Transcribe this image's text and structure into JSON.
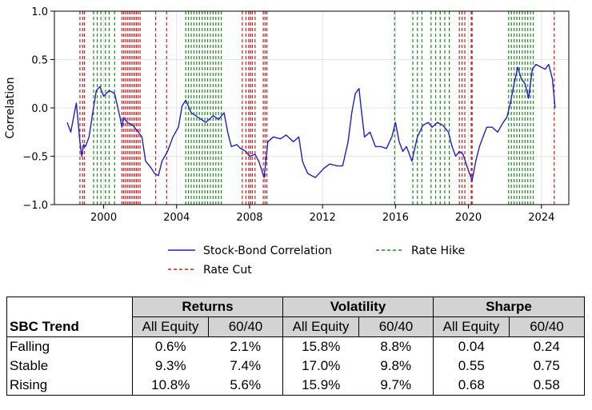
{
  "chart_data": {
    "type": "line",
    "title": "",
    "xlabel": "",
    "ylabel": "Correlation",
    "xlim": [
      1997.3,
      2025.5
    ],
    "ylim": [
      -1.0,
      1.0
    ],
    "xticks": [
      2000,
      2004,
      2008,
      2012,
      2016,
      2020,
      2024
    ],
    "xtick_labels": [
      "2000",
      "2004",
      "2008",
      "2012",
      "2016",
      "2020",
      "2024"
    ],
    "yticks": [
      -1.0,
      -0.5,
      0.0,
      0.5,
      1.0
    ],
    "ytick_labels": [
      "−1.0",
      "−0.5",
      "0.0",
      "0.5",
      "1.0"
    ],
    "grid": true,
    "legend_position": "below",
    "series": [
      {
        "name": "Stock-Bond Correlation",
        "color": "#1f1fcc",
        "x": [
          1998.0,
          1998.2,
          1998.35,
          1998.5,
          1998.7,
          1998.8,
          1998.9,
          1999.0,
          1999.2,
          1999.4,
          1999.6,
          1999.8,
          2000.0,
          2000.3,
          2000.6,
          2000.9,
          2001.0,
          2001.1,
          2001.3,
          2001.6,
          2001.9,
          2002.1,
          2002.3,
          2002.6,
          2002.8,
          2003.0,
          2003.2,
          2003.5,
          2003.8,
          2004.1,
          2004.3,
          2004.5,
          2004.8,
          2005.2,
          2005.6,
          2006.0,
          2006.3,
          2006.6,
          2006.8,
          2007.0,
          2007.3,
          2007.5,
          2007.8,
          2008.0,
          2008.3,
          2008.5,
          2008.8,
          2009.0,
          2009.3,
          2009.7,
          2010.0,
          2010.4,
          2010.7,
          2010.9,
          2011.0,
          2011.2,
          2011.4,
          2011.6,
          2011.8,
          2012.1,
          2012.4,
          2012.8,
          2013.1,
          2013.4,
          2013.6,
          2013.8,
          2014.0,
          2014.1,
          2014.3,
          2014.6,
          2014.9,
          2015.2,
          2015.5,
          2015.8,
          2016.0,
          2016.2,
          2016.4,
          2016.6,
          2016.9,
          2017.2,
          2017.5,
          2017.8,
          2018.0,
          2018.3,
          2018.6,
          2018.9,
          2019.1,
          2019.3,
          2019.5,
          2019.7,
          2020.0,
          2020.2,
          2020.4,
          2020.6,
          2020.8,
          2021.0,
          2021.3,
          2021.6,
          2021.9,
          2022.1,
          2022.3,
          2022.5,
          2022.7,
          2022.9,
          2023.1,
          2023.3,
          2023.5,
          2023.7,
          2024.0,
          2024.2,
          2024.4,
          2024.6,
          2024.75
        ],
        "values": [
          -0.15,
          -0.25,
          -0.1,
          0.05,
          -0.35,
          -0.5,
          -0.38,
          -0.4,
          -0.3,
          -0.05,
          0.18,
          0.22,
          0.12,
          0.18,
          0.15,
          -0.1,
          -0.2,
          -0.1,
          -0.15,
          -0.18,
          -0.25,
          -0.3,
          -0.55,
          -0.62,
          -0.68,
          -0.7,
          -0.55,
          -0.45,
          -0.3,
          -0.2,
          0.02,
          0.08,
          -0.05,
          -0.1,
          -0.15,
          -0.08,
          -0.12,
          -0.05,
          -0.25,
          -0.4,
          -0.38,
          -0.42,
          -0.45,
          -0.5,
          -0.48,
          -0.55,
          -0.72,
          -0.35,
          -0.3,
          -0.32,
          -0.28,
          -0.35,
          -0.3,
          -0.55,
          -0.6,
          -0.68,
          -0.7,
          -0.72,
          -0.68,
          -0.62,
          -0.58,
          -0.6,
          -0.6,
          -0.35,
          -0.05,
          0.15,
          0.2,
          0.02,
          -0.3,
          -0.25,
          -0.4,
          -0.4,
          -0.42,
          -0.3,
          -0.15,
          -0.35,
          -0.45,
          -0.4,
          -0.55,
          -0.3,
          -0.18,
          -0.15,
          -0.2,
          -0.15,
          -0.18,
          -0.25,
          -0.4,
          -0.5,
          -0.45,
          -0.48,
          -0.65,
          -0.75,
          -0.55,
          -0.4,
          -0.3,
          -0.2,
          -0.2,
          -0.25,
          -0.15,
          -0.1,
          0.05,
          0.25,
          0.42,
          0.3,
          0.25,
          0.1,
          0.4,
          0.45,
          0.42,
          0.4,
          0.45,
          0.3,
          0.0
        ]
      }
    ],
    "rate_hikes": {
      "name": "Rate Hike",
      "color": "#1e8c1e",
      "x": [
        1999.45,
        1999.65,
        1999.85,
        2000.1,
        2000.3,
        2000.6,
        2004.5,
        2004.65,
        2004.8,
        2004.95,
        2005.1,
        2005.25,
        2005.4,
        2005.55,
        2005.7,
        2005.85,
        2006.0,
        2006.15,
        2006.3,
        2006.45,
        2015.95,
        2016.95,
        2017.2,
        2017.45,
        2017.95,
        2018.2,
        2018.45,
        2018.7,
        2018.95,
        2022.2,
        2022.35,
        2022.5,
        2022.65,
        2022.8,
        2022.95,
        2023.1,
        2023.25,
        2023.4,
        2023.55
      ]
    },
    "rate_cuts": {
      "name": "Rate Cut",
      "color": "#cc1f1f",
      "x": [
        1998.7,
        1998.85,
        1998.95,
        2001.0,
        2001.1,
        2001.2,
        2001.3,
        2001.4,
        2001.5,
        2001.6,
        2001.7,
        2001.8,
        2001.9,
        2002.0,
        2002.85,
        2003.45,
        2007.6,
        2007.8,
        2007.95,
        2008.05,
        2008.15,
        2008.3,
        2008.75,
        2008.85,
        2008.95,
        2019.5,
        2019.65,
        2019.8,
        2020.15,
        2020.2,
        2024.7
      ]
    },
    "legend": [
      {
        "label": "Stock-Bond Correlation",
        "style": "solid",
        "color": "#1f1fcc"
      },
      {
        "label": "Rate Hike",
        "style": "dashed",
        "color": "#1e8c1e"
      },
      {
        "label": "Rate Cut",
        "style": "dashed",
        "color": "#cc1f1f"
      }
    ]
  },
  "table": {
    "groups": [
      "Returns",
      "Volatility",
      "Sharpe"
    ],
    "trend_header": "SBC Trend",
    "sub_headers": [
      "All Equity",
      "60/40",
      "All Equity",
      "60/40",
      "All Equity",
      "60/40"
    ],
    "rows": [
      {
        "label": "Falling",
        "values": [
          "0.6%",
          "2.1%",
          "15.8%",
          "8.8%",
          "0.04",
          "0.24"
        ]
      },
      {
        "label": "Stable",
        "values": [
          "9.3%",
          "7.4%",
          "17.0%",
          "9.8%",
          "0.55",
          "0.75"
        ]
      },
      {
        "label": "Rising",
        "values": [
          "10.8%",
          "5.6%",
          "15.9%",
          "9.7%",
          "0.68",
          "0.58"
        ]
      }
    ]
  }
}
